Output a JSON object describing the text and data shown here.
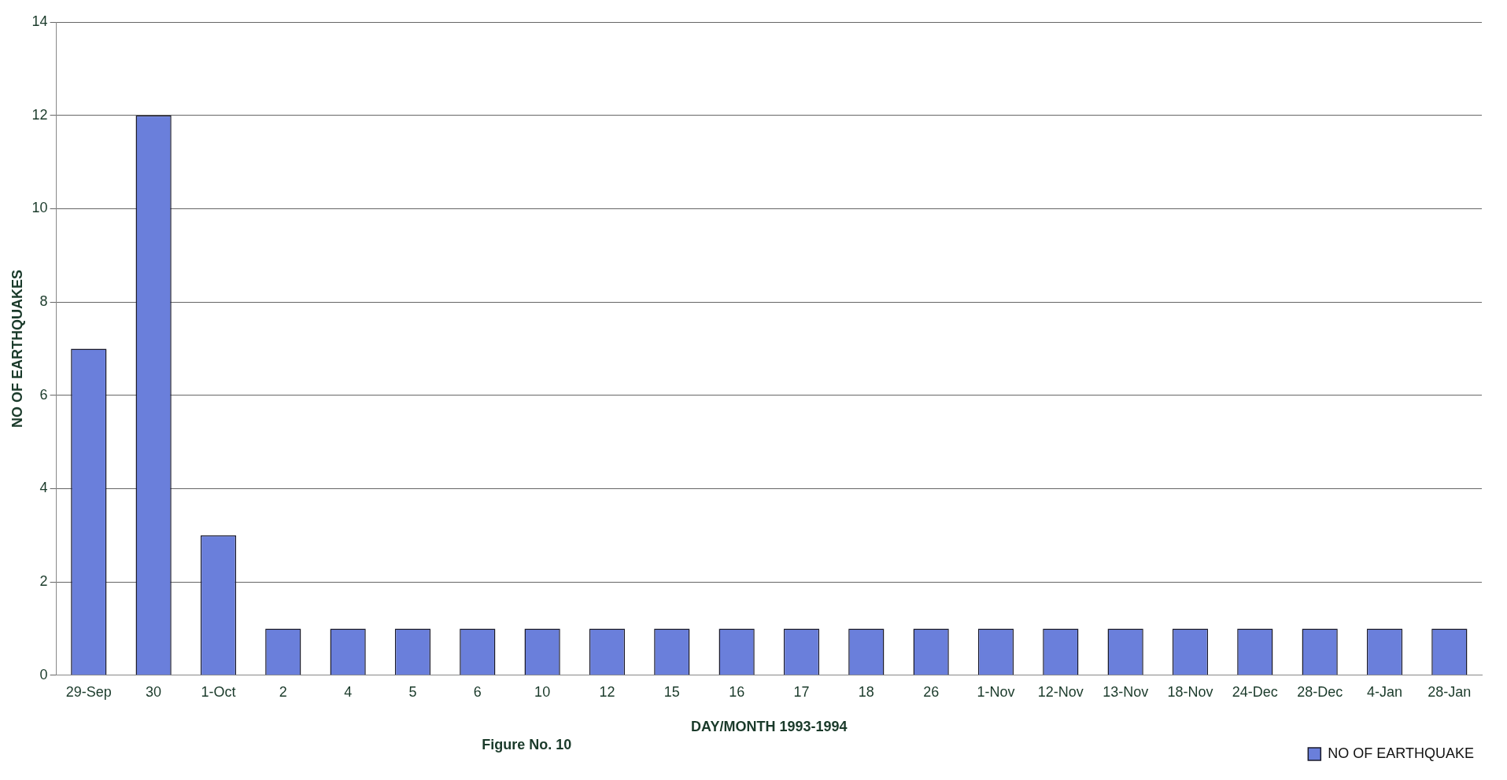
{
  "chart_data": {
    "type": "bar",
    "xlabel": "DAY/MONTH 1993-1994",
    "ylabel": "NO OF EARTHQUAKES",
    "annotations": [
      "Figure No. 10"
    ],
    "categories": [
      "29-Sep",
      "30",
      "1-Oct",
      "2",
      "4",
      "5",
      "6",
      "10",
      "12",
      "15",
      "16",
      "17",
      "18",
      "26",
      "1-Nov",
      "12-Nov",
      "13-Nov",
      "18-Nov",
      "24-Dec",
      "28-Dec",
      "4-Jan",
      "28-Jan"
    ],
    "series": [
      {
        "name": "NO OF EARTHQUAKE",
        "color": "#6a7fdb",
        "values": [
          7,
          12,
          3,
          1,
          1,
          1,
          1,
          1,
          1,
          1,
          1,
          1,
          1,
          1,
          1,
          1,
          1,
          1,
          1,
          1,
          1,
          1
        ]
      }
    ],
    "ylim": [
      0,
      14
    ],
    "yticks": [
      0,
      2,
      4,
      6,
      8,
      10,
      12,
      14
    ],
    "grid": "y",
    "legend": "bottom right"
  }
}
